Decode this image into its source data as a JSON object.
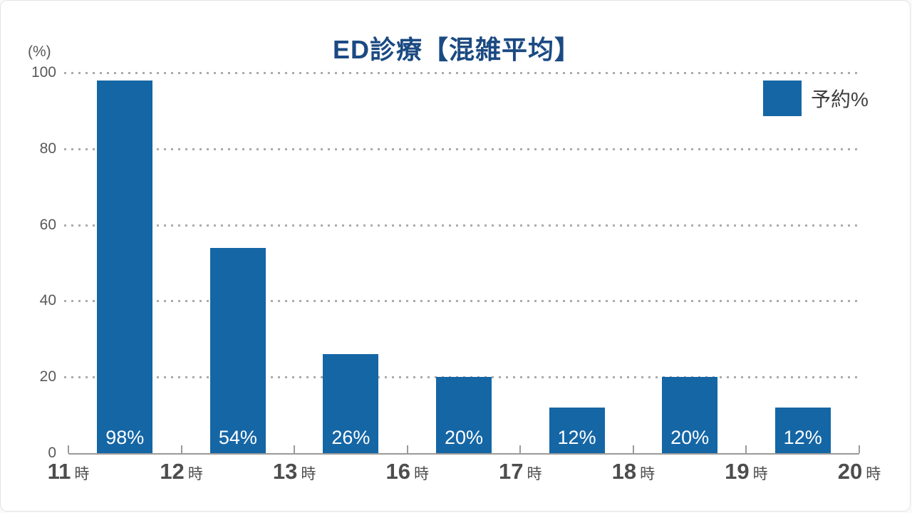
{
  "title": "ED診療【混雑平均】",
  "y_axis_unit": "(%)",
  "legend": {
    "label": "予約%",
    "swatch_color": "#1566a5"
  },
  "chart_data": {
    "type": "bar",
    "title": "ED診療【混雑平均】",
    "x_tick_labels": [
      "11時",
      "12時",
      "13時",
      "16時",
      "17時",
      "18時",
      "19時",
      "20時"
    ],
    "x_tick_hours": [
      "11",
      "12",
      "13",
      "16",
      "17",
      "18",
      "19",
      "20"
    ],
    "x_hour_suffix": "時",
    "series": [
      {
        "name": "予約%",
        "values": [
          98,
          54,
          26,
          20,
          12,
          20,
          12
        ]
      }
    ],
    "bar_value_labels": [
      "98%",
      "54%",
      "26%",
      "20%",
      "12%",
      "20%",
      "12%"
    ],
    "bars_positioned_between_ticks": true,
    "xlabel": "",
    "ylabel": "(%)",
    "ylim": [
      0,
      100
    ],
    "yticks": [
      0,
      20,
      40,
      60,
      80,
      100
    ],
    "grid": "horizontal-dotted",
    "legend_position": "top-right",
    "bar_color": "#1566a5",
    "title_color": "#1b4a82"
  }
}
